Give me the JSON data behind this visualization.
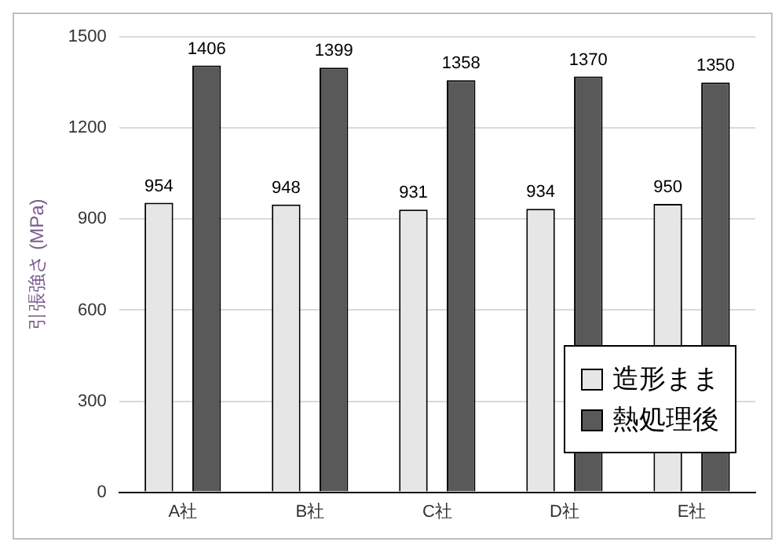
{
  "chart_data": {
    "type": "bar",
    "ylabel": "引張強さ (MPa)",
    "categories": [
      "A社",
      "B社",
      "C社",
      "D社",
      "E社"
    ],
    "series": [
      {
        "name": "造形まま",
        "color": "#e6e6e6",
        "values": [
          954,
          948,
          931,
          934,
          950
        ]
      },
      {
        "name": "熱処理後",
        "color": "#595959",
        "values": [
          1406,
          1399,
          1358,
          1370,
          1350
        ]
      }
    ],
    "ylim": [
      0,
      1500
    ],
    "yticks": [
      0,
      300,
      600,
      900,
      1200,
      1500
    ],
    "grid": "y",
    "legend": "bottom right",
    "data_labels": true
  }
}
